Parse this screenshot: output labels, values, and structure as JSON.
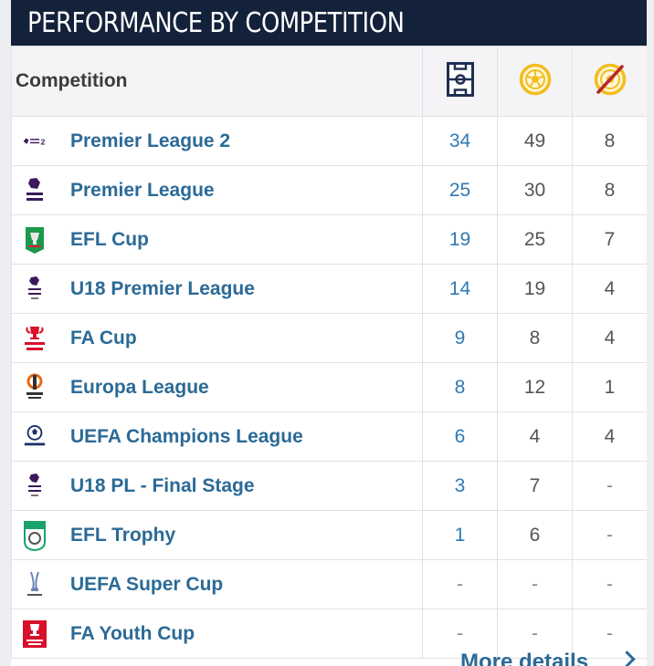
{
  "header": {
    "title": "PERFORMANCE BY COMPETITION"
  },
  "table": {
    "competition_header": "Competition",
    "column_icons": [
      "pitch-icon",
      "goal-ball-icon",
      "no-goals-icon"
    ],
    "rows": [
      {
        "name": "Premier League 2",
        "logo": "premier-league-2-logo",
        "apps": "34",
        "goals": "49",
        "third": "8"
      },
      {
        "name": "Premier League",
        "logo": "premier-league-logo",
        "apps": "25",
        "goals": "30",
        "third": "8"
      },
      {
        "name": "EFL Cup",
        "logo": "efl-cup-logo",
        "apps": "19",
        "goals": "25",
        "third": "7"
      },
      {
        "name": "U18 Premier League",
        "logo": "u18-premier-league-logo",
        "apps": "14",
        "goals": "19",
        "third": "4"
      },
      {
        "name": "FA Cup",
        "logo": "fa-cup-logo",
        "apps": "9",
        "goals": "8",
        "third": "4"
      },
      {
        "name": "Europa League",
        "logo": "europa-league-logo",
        "apps": "8",
        "goals": "12",
        "third": "1"
      },
      {
        "name": "UEFA Champions League",
        "logo": "champions-league-logo",
        "apps": "6",
        "goals": "4",
        "third": "4"
      },
      {
        "name": "U18 PL - Final Stage",
        "logo": "u18-pl-final-stage-logo",
        "apps": "3",
        "goals": "7",
        "third": "-"
      },
      {
        "name": "EFL Trophy",
        "logo": "efl-trophy-logo",
        "apps": "1",
        "goals": "6",
        "third": "-"
      },
      {
        "name": "UEFA Super Cup",
        "logo": "uefa-super-cup-logo",
        "apps": "-",
        "goals": "-",
        "third": "-"
      },
      {
        "name": "FA Youth Cup",
        "logo": "fa-youth-cup-logo",
        "apps": "-",
        "goals": "-",
        "third": "-"
      }
    ]
  },
  "footer": {
    "more_details": "More details"
  },
  "colors": {
    "header_bg": "#13213a",
    "link_blue": "#2b6a96",
    "apps_blue": "#2e79b5",
    "icon_yellow": "#f2bd1d",
    "strike_red": "#b3282d"
  }
}
